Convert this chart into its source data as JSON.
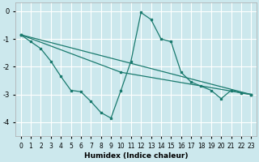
{
  "xlabel": "Humidex (Indice chaleur)",
  "background_color": "#cce8ed",
  "grid_color": "#ffffff",
  "line_color": "#1a7a6e",
  "xlim": [
    -0.5,
    23.5
  ],
  "ylim": [
    -4.5,
    0.3
  ],
  "yticks": [
    0,
    -1,
    -2,
    -3,
    -4
  ],
  "xticks": [
    0,
    1,
    2,
    3,
    4,
    5,
    6,
    7,
    8,
    9,
    10,
    11,
    12,
    13,
    14,
    15,
    16,
    17,
    18,
    19,
    20,
    21,
    22,
    23
  ],
  "line1_x": [
    0,
    1,
    2,
    3,
    4,
    5,
    6,
    7,
    8,
    9,
    10,
    11,
    12,
    13,
    14,
    15,
    16,
    17,
    18,
    19,
    20,
    21,
    22,
    23
  ],
  "line1_y": [
    -0.85,
    -1.1,
    -1.35,
    -1.8,
    -2.35,
    -2.85,
    -2.9,
    -3.25,
    -3.65,
    -3.85,
    -2.85,
    -1.8,
    -0.05,
    -0.3,
    -1.0,
    -1.1,
    -2.2,
    -2.55,
    -2.7,
    -2.85,
    -3.15,
    -2.85,
    -2.95,
    -3.0
  ],
  "line2_x": [
    0,
    23
  ],
  "line2_y": [
    -0.85,
    -3.0
  ],
  "line3_x": [
    0,
    10,
    23
  ],
  "line3_y": [
    -0.85,
    -2.2,
    -3.0
  ],
  "spine_color": "#aaaaaa",
  "xlabel_fontsize": 6.5,
  "tick_fontsize": 5.5
}
